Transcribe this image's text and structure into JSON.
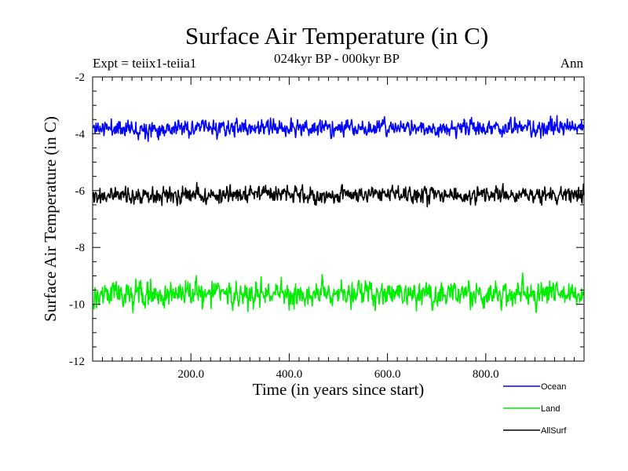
{
  "chart_data": {
    "type": "line",
    "title": "Surface Air Temperature (in C)",
    "subtitle": "024kyr BP - 000kyr BP",
    "expt_label": "Expt = teiix1-teiia1",
    "season_label": "Ann",
    "xlabel": "Time (in years since start)",
    "ylabel": "Surface Air Temperature (in C)",
    "xlim": [
      0,
      1000
    ],
    "ylim": [
      -12,
      -2
    ],
    "x_ticks": [
      200,
      400,
      600,
      800
    ],
    "x_tick_labels": [
      "200.0",
      "400.0",
      "600.0",
      "800.0"
    ],
    "y_ticks": [
      -12,
      -10,
      -8,
      -6,
      -4,
      -2
    ],
    "y_tick_labels": [
      "-12",
      "-10",
      "-8",
      "-6",
      "-4",
      "-2"
    ],
    "x_minor_step": 20,
    "y_minor_step": 0.5,
    "grid": false,
    "legend_position": "bottom-right",
    "series": [
      {
        "name": "Ocean",
        "color": "#0000ff",
        "mean": -3.8,
        "amplitude": 0.14,
        "seed": 11
      },
      {
        "name": "Land",
        "color": "#00ee00",
        "mean": -9.65,
        "amplitude": 0.22,
        "seed": 29
      },
      {
        "name": "AllSurf",
        "color": "#000000",
        "mean": -6.15,
        "amplitude": 0.14,
        "seed": 47
      }
    ]
  }
}
